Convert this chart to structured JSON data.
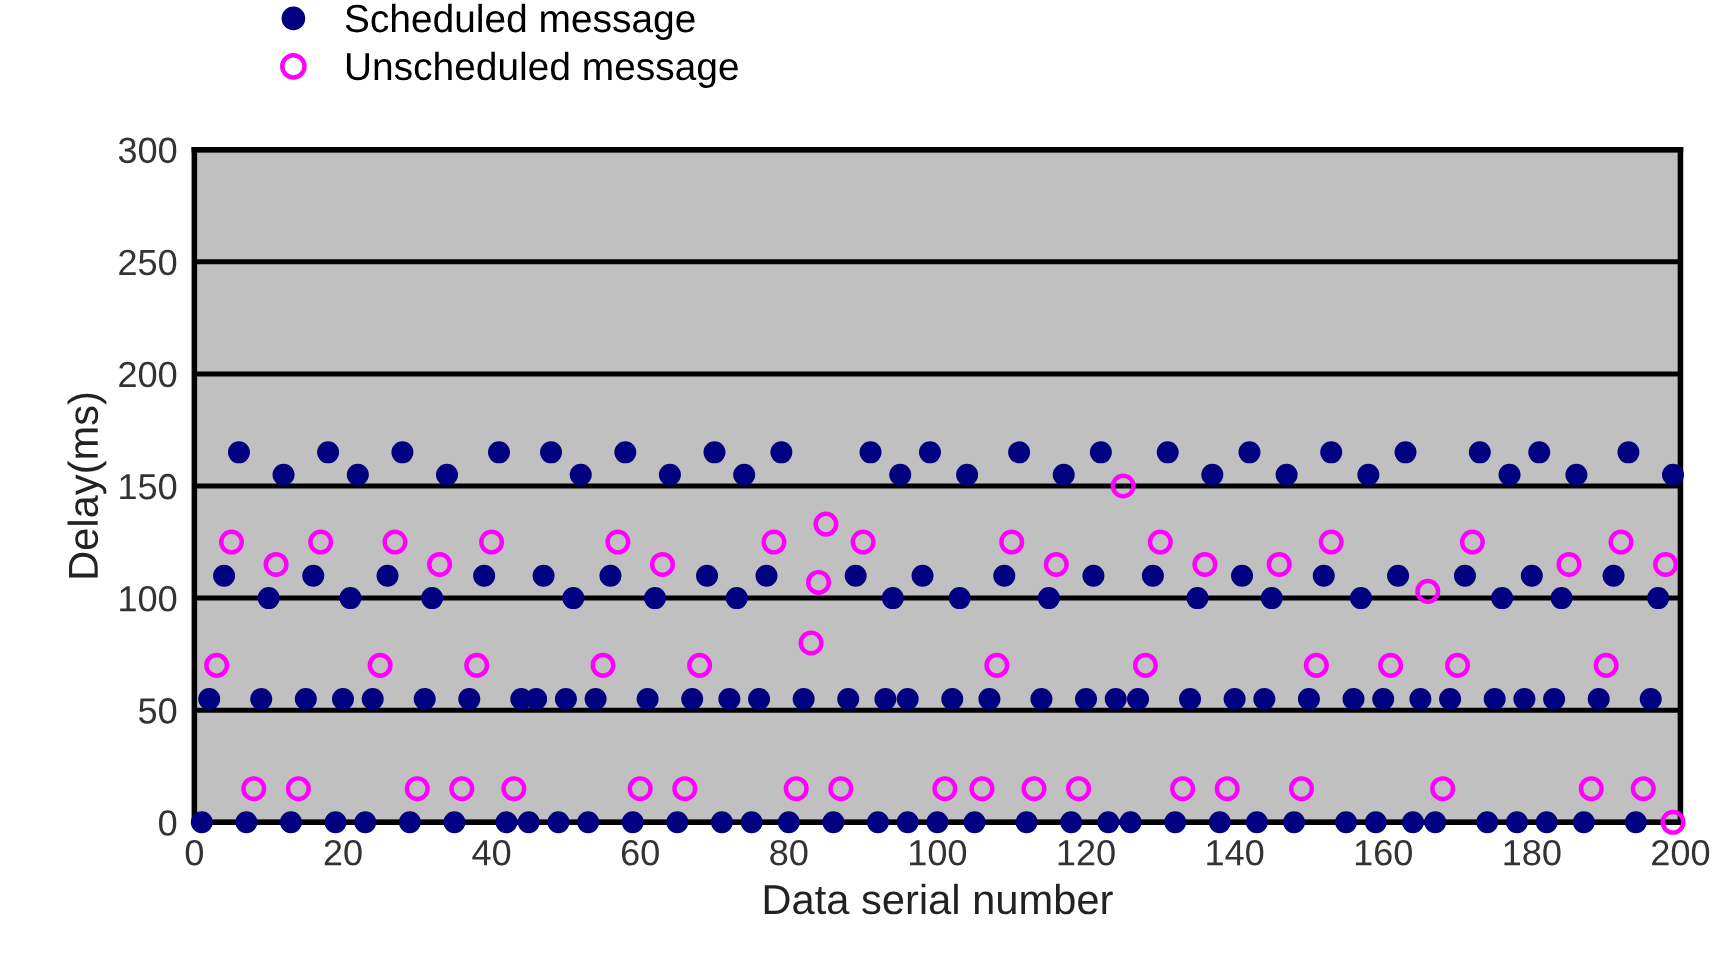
{
  "chart_data": {
    "type": "scatter",
    "xlabel": "Data serial number",
    "ylabel": "Delay(ms)",
    "xlim": [
      0,
      200
    ],
    "xticks": [
      0,
      20,
      40,
      60,
      80,
      100,
      120,
      140,
      160,
      180,
      200
    ],
    "ylim": [
      0,
      300
    ],
    "yticks": [
      0,
      50,
      100,
      150,
      200,
      250,
      300
    ],
    "grid": "y",
    "legend": "top left",
    "marker": "circle",
    "series": [
      {
        "name": "Scheduled message",
        "color": "#000080",
        "x": [
          1,
          2,
          4,
          6,
          7,
          9,
          10,
          12,
          13,
          15,
          16,
          18,
          19,
          20,
          21,
          22,
          23,
          24,
          26,
          28,
          29,
          31,
          32,
          34,
          35,
          37,
          39,
          41,
          42,
          44,
          45,
          46,
          47,
          48,
          49,
          50,
          51,
          52,
          53,
          54,
          56,
          58,
          59,
          61,
          62,
          64,
          65,
          67,
          69,
          70,
          71,
          72,
          73,
          74,
          75,
          76,
          77,
          79,
          80,
          82,
          86,
          88,
          89,
          91,
          92,
          93,
          94,
          95,
          96,
          96,
          98,
          99,
          100,
          102,
          103,
          104,
          105,
          107,
          109,
          111,
          112,
          114,
          115,
          117,
          118,
          120,
          121,
          122,
          123,
          124,
          126,
          127,
          129,
          131,
          132,
          134,
          135,
          137,
          138,
          140,
          141,
          142,
          143,
          144,
          145,
          147,
          148,
          150,
          152,
          153,
          155,
          156,
          157,
          158,
          159,
          160,
          162,
          163,
          164,
          165,
          167,
          169,
          171,
          173,
          174,
          175,
          176,
          177,
          178,
          179,
          180,
          181,
          182,
          183,
          184,
          186,
          187,
          189,
          191,
          193,
          194,
          196,
          197,
          199
        ],
        "values": [
          0,
          55,
          110,
          165,
          0,
          55,
          100,
          155,
          0,
          55,
          110,
          165,
          0,
          55,
          100,
          155,
          0,
          55,
          110,
          165,
          0,
          55,
          100,
          155,
          0,
          55,
          110,
          165,
          0,
          55,
          0,
          55,
          110,
          165,
          0,
          55,
          100,
          155,
          0,
          55,
          110,
          165,
          0,
          55,
          100,
          155,
          0,
          55,
          110,
          165,
          0,
          55,
          100,
          155,
          0,
          55,
          110,
          165,
          0,
          55,
          0,
          55,
          110,
          165,
          0,
          55,
          100,
          155,
          0,
          55,
          110,
          165,
          0,
          55,
          100,
          155,
          0,
          55,
          110,
          165,
          0,
          55,
          100,
          155,
          0,
          55,
          110,
          165,
          0,
          55,
          0,
          55,
          110,
          165,
          0,
          55,
          100,
          155,
          0,
          55,
          110,
          165,
          0,
          55,
          100,
          155,
          0,
          55,
          110,
          165,
          0,
          55,
          100,
          155,
          0,
          55,
          110,
          165,
          0,
          55,
          0,
          55,
          110,
          165,
          0,
          55,
          100,
          155,
          0,
          55,
          110,
          165,
          0,
          55,
          100,
          155,
          0,
          55,
          110,
          165,
          0,
          55,
          100,
          155
        ]
      },
      {
        "name": "Unscheduled message",
        "color": "#ff00ff",
        "x": [
          3,
          5,
          8,
          11,
          14,
          17,
          25,
          27,
          30,
          33,
          36,
          38,
          40,
          43,
          55,
          57,
          60,
          63,
          66,
          68,
          78,
          81,
          83,
          84,
          85,
          87,
          90,
          101,
          106,
          108,
          110,
          113,
          116,
          119,
          125,
          128,
          130,
          133,
          136,
          139,
          146,
          149,
          151,
          153,
          161,
          166,
          168,
          170,
          172,
          185,
          188,
          190,
          192,
          195,
          198,
          199
        ],
        "values": [
          70,
          125,
          15,
          115,
          15,
          125,
          70,
          125,
          15,
          115,
          15,
          70,
          125,
          15,
          70,
          125,
          15,
          115,
          15,
          70,
          125,
          15,
          80,
          107,
          133,
          15,
          125,
          15,
          15,
          70,
          125,
          15,
          115,
          15,
          150,
          70,
          125,
          15,
          115,
          15,
          115,
          15,
          70,
          125,
          70,
          103,
          15,
          70,
          125,
          115,
          15,
          70,
          125,
          15,
          115,
          0
        ]
      }
    ]
  }
}
